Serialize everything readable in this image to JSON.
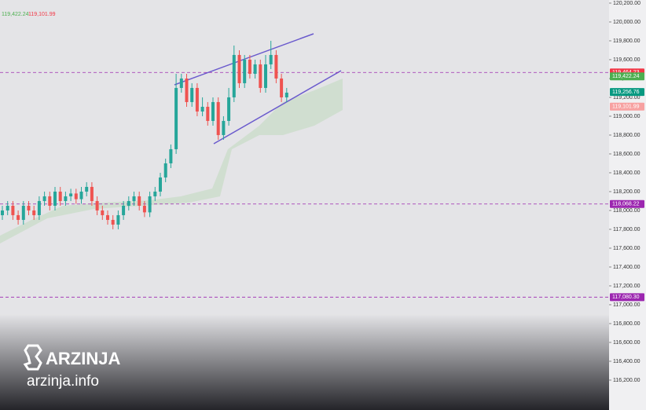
{
  "chart_data": {
    "type": "candlestick",
    "legend_values": [
      {
        "value": 119422.24,
        "label": "119,422.24",
        "color": "#4caf50"
      },
      {
        "value": 119101.99,
        "label": "119,101.99",
        "color": "#f23645"
      }
    ],
    "up_color": "#26a69a",
    "down_color": "#ef5350",
    "open": [
      117950,
      118000,
      118050,
      117950,
      117900,
      118050,
      118000,
      117950,
      118100,
      118150,
      118050,
      118200,
      118100,
      118150,
      118180,
      118120,
      118200,
      118250,
      118100,
      118000,
      117950,
      117900,
      117850,
      117950,
      118050,
      118100,
      118150,
      118050,
      117980,
      118150,
      118200,
      118350,
      118500,
      118650,
      119300,
      119400,
      119150,
      119300,
      119050,
      119100,
      118950,
      119150,
      118800,
      118950,
      119200,
      119650,
      119350,
      119600,
      119450,
      119550,
      119300,
      119550,
      119650,
      119400,
      119200
    ],
    "high": [
      118050,
      118100,
      118100,
      118000,
      118100,
      118100,
      118050,
      118150,
      118200,
      118200,
      118250,
      118250,
      118200,
      118230,
      118230,
      118250,
      118300,
      118300,
      118150,
      118050,
      118000,
      117950,
      118000,
      118100,
      118150,
      118200,
      118200,
      118100,
      118200,
      118250,
      118400,
      118550,
      118700,
      119450,
      119450,
      119450,
      119350,
      119350,
      119200,
      119150,
      119200,
      119200,
      119000,
      119300,
      119750,
      119700,
      119650,
      119650,
      119600,
      119600,
      119650,
      119800,
      119700,
      119450,
      119300
    ],
    "low": [
      117900,
      117950,
      117900,
      117850,
      117850,
      117950,
      117900,
      117900,
      118050,
      118000,
      118000,
      118050,
      118050,
      118100,
      118070,
      118070,
      118150,
      118050,
      117950,
      117900,
      117850,
      117800,
      117800,
      117900,
      118000,
      118050,
      118000,
      117930,
      117930,
      118100,
      118150,
      118300,
      118450,
      118600,
      119250,
      119100,
      119100,
      119000,
      119000,
      118900,
      118900,
      118750,
      118750,
      118900,
      119150,
      119300,
      119300,
      119400,
      119400,
      119250,
      119250,
      119500,
      119350,
      119150,
      119150
    ],
    "close": [
      118000,
      118050,
      117950,
      117900,
      118050,
      118000,
      117950,
      118100,
      118150,
      118050,
      118200,
      118100,
      118150,
      118180,
      118120,
      118200,
      118250,
      118100,
      118000,
      117950,
      117900,
      117850,
      117950,
      118050,
      118100,
      118150,
      118050,
      117980,
      118150,
      118200,
      118350,
      118500,
      118650,
      119300,
      119400,
      119150,
      119300,
      119050,
      119100,
      118950,
      119150,
      118800,
      118950,
      119200,
      119650,
      119350,
      119600,
      119450,
      119550,
      119300,
      119550,
      119650,
      119400,
      119200,
      119250
    ],
    "ylim": [
      115883,
      120233
    ],
    "yticks": [
      {
        "value": 116200,
        "label": "116,200.00"
      },
      {
        "value": 116400,
        "label": "116,400.00"
      },
      {
        "value": 116600,
        "label": "116,600.00"
      },
      {
        "value": 116800,
        "label": "116,800.00"
      },
      {
        "value": 117000,
        "label": "117,000.00"
      },
      {
        "value": 117200,
        "label": "117,200.00"
      },
      {
        "value": 117400,
        "label": "117,400.00"
      },
      {
        "value": 117600,
        "label": "117,600.00"
      },
      {
        "value": 117800,
        "label": "117,800.00"
      },
      {
        "value": 118000,
        "label": "118,000.00"
      },
      {
        "value": 118200,
        "label": "118,200.00"
      },
      {
        "value": 118400,
        "label": "118,400.00"
      },
      {
        "value": 118600,
        "label": "118,600.00"
      },
      {
        "value": 118800,
        "label": "118,800.00"
      },
      {
        "value": 119000,
        "label": "119,000.00"
      },
      {
        "value": 119200,
        "label": "119,200.00"
      },
      {
        "value": 119400,
        "label": "119,400.00"
      },
      {
        "value": 119600,
        "label": "119,600.00"
      },
      {
        "value": 119800,
        "label": "119,800.00"
      },
      {
        "value": 120000,
        "label": "120,000.00"
      },
      {
        "value": 120200,
        "label": "120,200.00"
      }
    ],
    "hlines": [
      {
        "value": 119464.23,
        "color": "#9c27b0"
      },
      {
        "value": 118068.22,
        "color": "#9c27b0"
      },
      {
        "value": 117080.3,
        "color": "#9c27b0"
      }
    ],
    "price_labels": [
      {
        "value": 119464.23,
        "label": "119,464.23",
        "color": "#f23645"
      },
      {
        "value": 119422.24,
        "label": "119,422.24",
        "color": "#4caf50"
      },
      {
        "value": 119256.76,
        "label": "119,256.76",
        "color": "#089981"
      },
      {
        "value": 119101.99,
        "label": "119,101.99",
        "color": "#f7a1a1"
      },
      {
        "value": 118068.22,
        "label": "118,068.22",
        "color": "#9c27b0"
      },
      {
        "value": 117080.3,
        "label": "117,080.30",
        "color": "#9c27b0"
      }
    ],
    "brand": "ARZINJA",
    "site": "arzinja.info"
  }
}
